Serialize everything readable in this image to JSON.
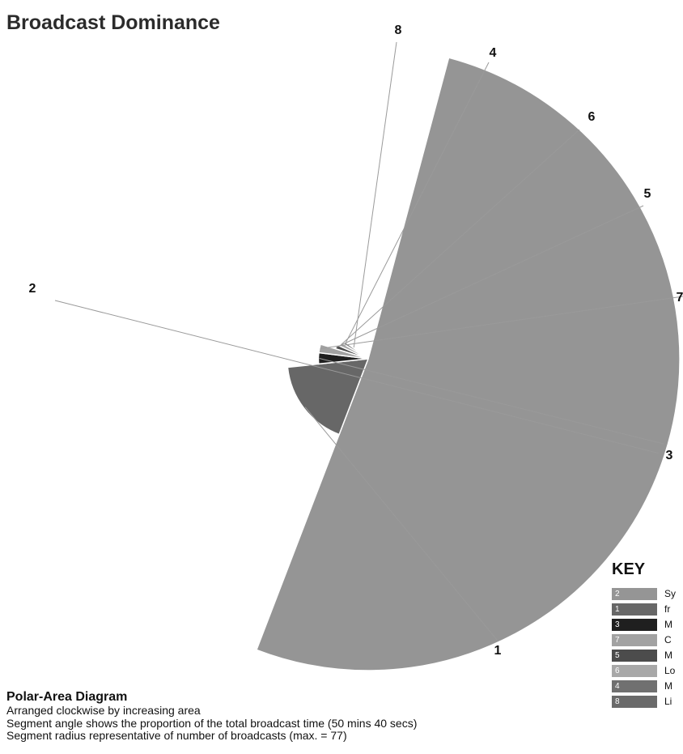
{
  "chart_data": {
    "type": "polar-area",
    "title": "Broadcast Dominance",
    "arrangement": "clockwise by increasing area",
    "segments": [
      {
        "id": "2",
        "key_label": "Sy",
        "color": "#959595",
        "sweep_deg": 186,
        "radius_fraction": 1.0
      },
      {
        "id": "1",
        "key_label": "fr",
        "color": "#676767",
        "sweep_deg": 63,
        "radius_fraction": 0.26
      },
      {
        "id": "3",
        "key_label": "M",
        "color": "#1f1f1f",
        "sweep_deg": 13,
        "radius_fraction": 0.16
      },
      {
        "id": "7",
        "key_label": "C",
        "color": "#a2a2a2",
        "sweep_deg": 10,
        "radius_fraction": 0.16
      },
      {
        "id": "5",
        "key_label": "M",
        "color": "#4c4c4c",
        "sweep_deg": 7,
        "radius_fraction": 0.11
      },
      {
        "id": "6",
        "key_label": "Lo",
        "color": "#a8a8a8",
        "sweep_deg": 7,
        "radius_fraction": 0.1
      },
      {
        "id": "4",
        "key_label": "M",
        "color": "#707070",
        "sweep_deg": 5,
        "radius_fraction": 0.09
      },
      {
        "id": "8",
        "key_label": "Li",
        "color": "#6a6a6a",
        "sweep_deg": 4,
        "radius_fraction": 0.06
      }
    ]
  },
  "caption": {
    "heading": "Polar-Area Diagram",
    "lines": [
      "Arranged clockwise by increasing area",
      "Segment angle shows the proportion of the total broadcast time (50 mins 40 secs)",
      "Segment radius representative of number of broadcasts (max. = 77)"
    ]
  },
  "key": {
    "title": "KEY"
  }
}
